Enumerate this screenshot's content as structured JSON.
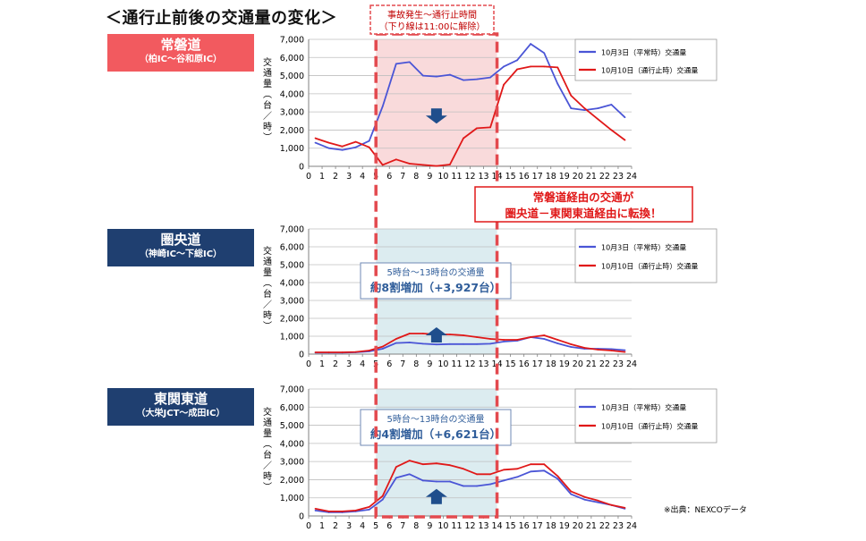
{
  "title": "＜通行止前後の交通量の変化＞",
  "incident_box": {
    "line1": "事故発生～通行止時間",
    "line2": "（下り線は11:00に解除）"
  },
  "shift_callout": {
    "line1": "常磐道経由の交通が",
    "line2": "圏央道－東関東道経由に転換！"
  },
  "source": "※出典：NEXCOデータ",
  "colors": {
    "normal_day": "#4a55d6",
    "closure_day": "#e01818",
    "shade_red": "#f9dadb",
    "shade_teal": "#dcecf0",
    "dashed_box": "#e34a4f",
    "brand_red": "#f25a5f",
    "brand_navy": "#1f3f70"
  },
  "roads": [
    {
      "name": "常磐道",
      "section": "（柏IC～谷和原IC）"
    },
    {
      "name": "圏央道",
      "section": "（神崎IC～下総IC）"
    },
    {
      "name": "東関東道",
      "section": "（大栄JCT～成田IC）"
    }
  ],
  "increase_notes": [
    {
      "line1": "5時台～13時台の交通量",
      "line2": "約8割増加（+3,927台）"
    },
    {
      "line1": "5時台～13時台の交通量",
      "line2": "約4割増加（+6,621台）"
    }
  ],
  "chart_data": [
    {
      "type": "line",
      "ylabel": "交通量（台／時）",
      "xlim": [
        0,
        24
      ],
      "ylim": [
        0,
        7000
      ],
      "yticks": [
        "0",
        "1,000",
        "2,000",
        "3,000",
        "4,000",
        "5,000",
        "6,000",
        "7,000"
      ],
      "xticks": [
        "0",
        "1",
        "2",
        "3",
        "4",
        "5",
        "6",
        "7",
        "8",
        "9",
        "10",
        "11",
        "12",
        "13",
        "14",
        "15",
        "16",
        "17",
        "18",
        "19",
        "20",
        "21",
        "22",
        "23",
        "24"
      ],
      "shaded_x_range": [
        5,
        14
      ],
      "arrow": "down",
      "legend_position": "top-right",
      "x": [
        0.5,
        1.5,
        2.5,
        3.5,
        4.5,
        5.5,
        6.5,
        7.5,
        8.5,
        9.5,
        10.5,
        11.5,
        12.5,
        13.5,
        14.5,
        15.5,
        16.5,
        17.5,
        18.5,
        19.5,
        20.5,
        21.5,
        22.5,
        23.5
      ],
      "series": [
        {
          "name": "10月3日（平常時）交通量",
          "color": "#4a55d6",
          "values": [
            1300,
            1000,
            900,
            1050,
            1400,
            3300,
            5650,
            5750,
            5000,
            4950,
            5050,
            4750,
            4800,
            4900,
            5500,
            5850,
            6750,
            6250,
            4550,
            3200,
            3100,
            3200,
            3400,
            2700
          ]
        },
        {
          "name": "10月10日（通行止時）交通量",
          "color": "#e01818",
          "values": [
            1550,
            1300,
            1100,
            1350,
            1050,
            80,
            380,
            150,
            80,
            20,
            100,
            1550,
            2100,
            2150,
            4500,
            5350,
            5500,
            5500,
            5450,
            3900,
            3200,
            2600,
            2000,
            1450
          ]
        }
      ]
    },
    {
      "type": "line",
      "ylabel": "交通量（台／時）",
      "xlim": [
        0,
        24
      ],
      "ylim": [
        0,
        7000
      ],
      "yticks": [
        "0",
        "1,000",
        "2,000",
        "3,000",
        "4,000",
        "5,000",
        "6,000",
        "7,000"
      ],
      "xticks": [
        "0",
        "1",
        "2",
        "3",
        "4",
        "5",
        "6",
        "7",
        "8",
        "9",
        "10",
        "11",
        "12",
        "13",
        "14",
        "15",
        "16",
        "17",
        "18",
        "19",
        "20",
        "21",
        "22",
        "23",
        "24"
      ],
      "shaded_x_range": [
        5,
        14
      ],
      "arrow": "up",
      "legend_position": "top-right",
      "x": [
        0.5,
        1.5,
        2.5,
        3.5,
        4.5,
        5.5,
        6.5,
        7.5,
        8.5,
        9.5,
        10.5,
        11.5,
        12.5,
        13.5,
        14.5,
        15.5,
        16.5,
        17.5,
        18.5,
        19.5,
        20.5,
        21.5,
        22.5,
        23.5
      ],
      "series": [
        {
          "name": "10月3日（平常時）交通量",
          "color": "#4a55d6",
          "values": [
            80,
            80,
            80,
            100,
            150,
            300,
            620,
            650,
            580,
            540,
            560,
            560,
            560,
            580,
            700,
            750,
            950,
            850,
            600,
            400,
            300,
            300,
            280,
            220
          ]
        },
        {
          "name": "10月10日（通行止時）交通量",
          "color": "#e01818",
          "values": [
            100,
            100,
            100,
            120,
            200,
            420,
            850,
            1150,
            1150,
            1100,
            1100,
            1050,
            950,
            850,
            800,
            800,
            950,
            1050,
            800,
            550,
            350,
            250,
            200,
            120
          ]
        }
      ]
    },
    {
      "type": "line",
      "ylabel": "交通量（台／時）",
      "xlim": [
        0,
        24
      ],
      "ylim": [
        0,
        7000
      ],
      "yticks": [
        "0",
        "1,000",
        "2,000",
        "3,000",
        "4,000",
        "5,000",
        "6,000",
        "7,000"
      ],
      "xticks": [
        "0",
        "1",
        "2",
        "3",
        "4",
        "5",
        "6",
        "7",
        "8",
        "9",
        "10",
        "11",
        "12",
        "13",
        "14",
        "15",
        "16",
        "17",
        "18",
        "19",
        "20",
        "21",
        "22",
        "23",
        "24"
      ],
      "shaded_x_range": [
        5,
        14
      ],
      "arrow": "up",
      "legend_position": "top-right",
      "x": [
        0.5,
        1.5,
        2.5,
        3.5,
        4.5,
        5.5,
        6.5,
        7.5,
        8.5,
        9.5,
        10.5,
        11.5,
        12.5,
        13.5,
        14.5,
        15.5,
        16.5,
        17.5,
        18.5,
        19.5,
        20.5,
        21.5,
        22.5,
        23.5
      ],
      "series": [
        {
          "name": "10月3日（平常時）交通量",
          "color": "#4a55d6",
          "values": [
            300,
            200,
            200,
            250,
            350,
            900,
            2100,
            2300,
            1950,
            1900,
            1900,
            1650,
            1650,
            1750,
            1950,
            2150,
            2450,
            2500,
            2050,
            1200,
            900,
            750,
            600,
            400
          ]
        },
        {
          "name": "10月10日（通行止時）交通量",
          "color": "#e01818",
          "values": [
            400,
            250,
            250,
            300,
            500,
            1100,
            2700,
            3050,
            2850,
            2900,
            2800,
            2600,
            2300,
            2300,
            2550,
            2600,
            2850,
            2850,
            2200,
            1350,
            1050,
            850,
            600,
            450
          ]
        }
      ]
    }
  ]
}
